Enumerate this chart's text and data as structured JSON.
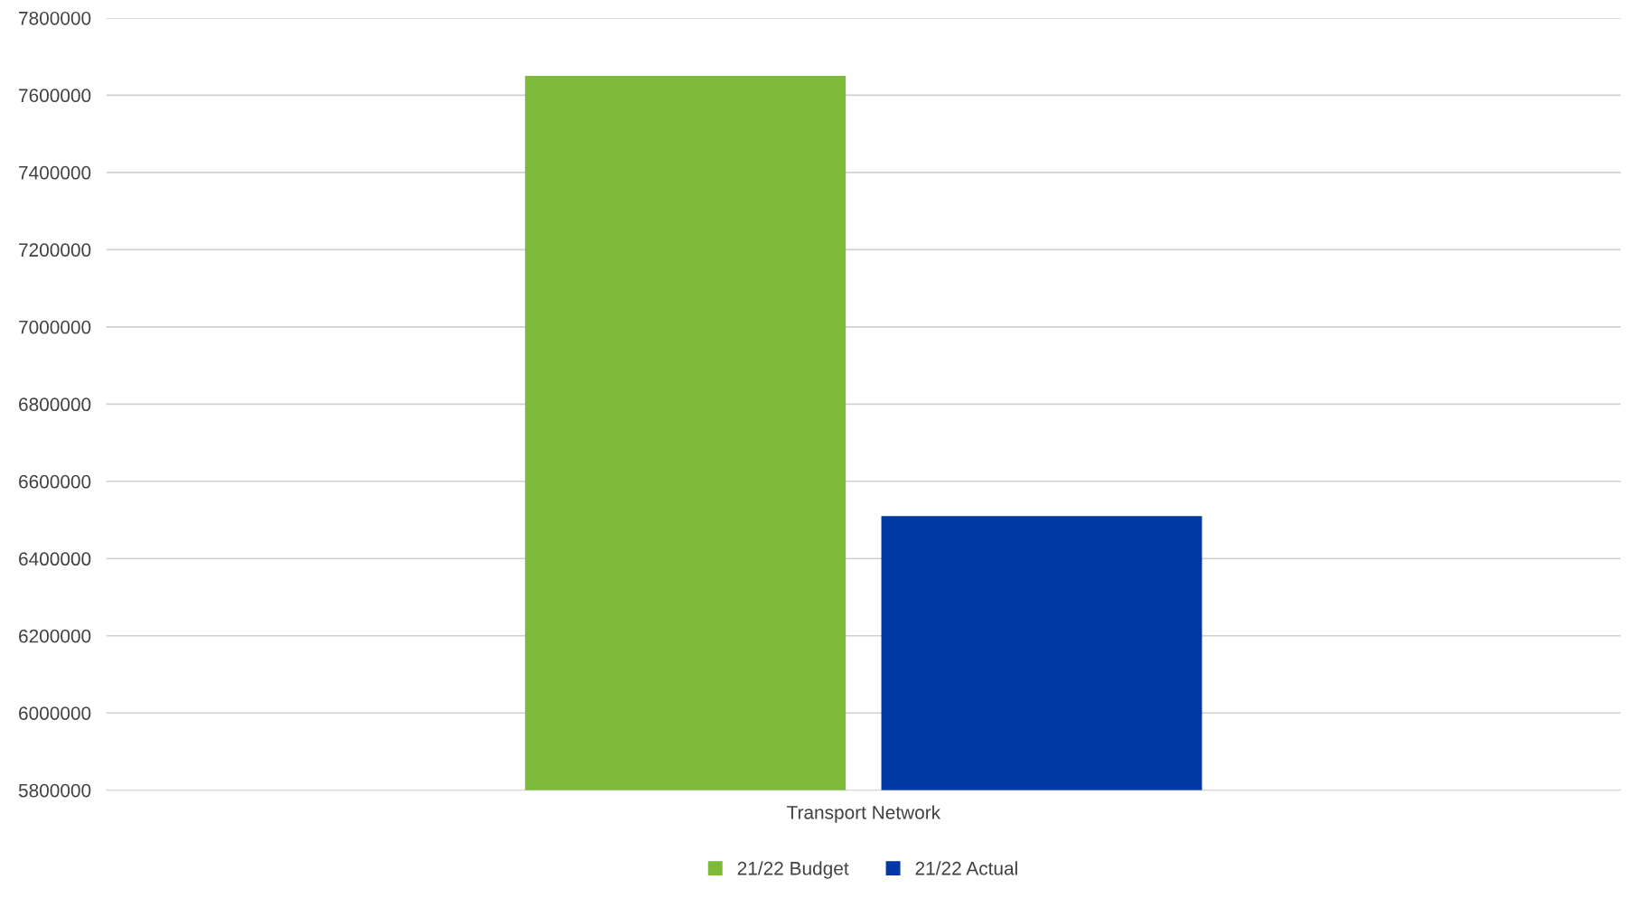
{
  "chart_data": {
    "type": "bar",
    "categories": [
      "Transport Network"
    ],
    "series": [
      {
        "name": "21/22 Budget",
        "color": "#7dba3c",
        "values": [
          7650000
        ]
      },
      {
        "name": "21/22 Actual",
        "color": "#0039a6",
        "values": [
          6510000
        ]
      }
    ],
    "ylim": [
      5800000,
      7800000
    ],
    "yticks": [
      5800000,
      6000000,
      6200000,
      6400000,
      6600000,
      6800000,
      7000000,
      7200000,
      7400000,
      7600000,
      7800000
    ],
    "grid": "y",
    "legend": "bottom"
  }
}
